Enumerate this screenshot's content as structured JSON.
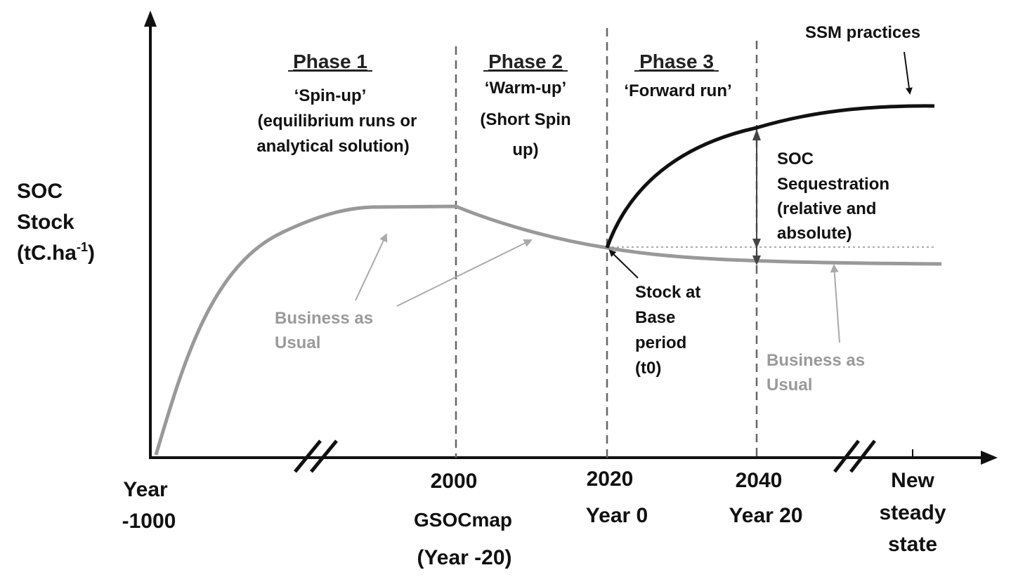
{
  "axes": {
    "y_label_line1": "SOC",
    "y_label_line2": "Stock",
    "y_label_line3_main": "(tC.ha",
    "y_label_line3_sup": "-1",
    "y_label_line3_end": ")"
  },
  "phases": [
    {
      "title": "Phase 1",
      "desc": [
        "‘Spin-up’",
        "(equilibrium runs or",
        "analytical solution)"
      ]
    },
    {
      "title": "Phase 2",
      "desc": [
        "‘Warm-up’",
        "(Short Spin",
        "up)"
      ]
    },
    {
      "title": "Phase 3",
      "desc": [
        "‘Forward run’"
      ]
    }
  ],
  "x_ticks": [
    {
      "lines": [
        "Year",
        "-1000"
      ]
    },
    {
      "lines": [
        "2000"
      ]
    },
    {
      "lines": [
        "GSOCmap"
      ]
    },
    {
      "lines": [
        "(Year -20)"
      ]
    },
    {
      "lines": [
        "2020",
        "Year 0"
      ]
    },
    {
      "lines": [
        "2040",
        "Year 20"
      ]
    },
    {
      "lines": [
        "New",
        "steady",
        "state"
      ]
    }
  ],
  "annotations": {
    "ssm": "SSM practices",
    "sequestration": [
      "SOC",
      "Sequestration",
      "(relative and",
      "absolute)"
    ],
    "stock_base": [
      "Stock at",
      "Base",
      "period",
      "(t0)"
    ],
    "bau_left": [
      "Business as",
      "Usual"
    ],
    "bau_right": [
      "Business as",
      "Usual"
    ]
  },
  "colors": {
    "axis": "#111111",
    "bau_curve": "#999999",
    "ssm_curve": "#111111",
    "dashed": "#666666",
    "grey_text": "#9a9a9a"
  }
}
